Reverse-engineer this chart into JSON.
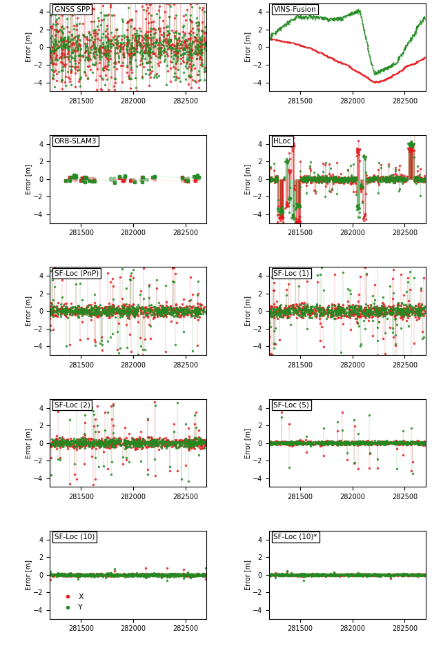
{
  "titles": [
    "GNSS SPP",
    "VINS-Fusion",
    "ORB-SLAM3",
    "HLoc",
    "SF-Loc (PnP)",
    "SF-Loc (1)",
    "SF-Loc (2)",
    "SF-Loc (5)",
    "SF-Loc (10)",
    "SF-Loc (10)*"
  ],
  "x_range": [
    281200,
    282700
  ],
  "x_ticks": [
    281500,
    282000,
    282500
  ],
  "y_range": [
    -5,
    5
  ],
  "y_ticks": [
    -4,
    -2,
    0,
    2,
    4
  ],
  "color_x": "#e41a1c",
  "color_y": "#228b22",
  "color_x_light": "#f4a0a0",
  "color_y_light": "#90c090",
  "seed": 42,
  "n_points": 600,
  "ylabel": "Error [m]"
}
